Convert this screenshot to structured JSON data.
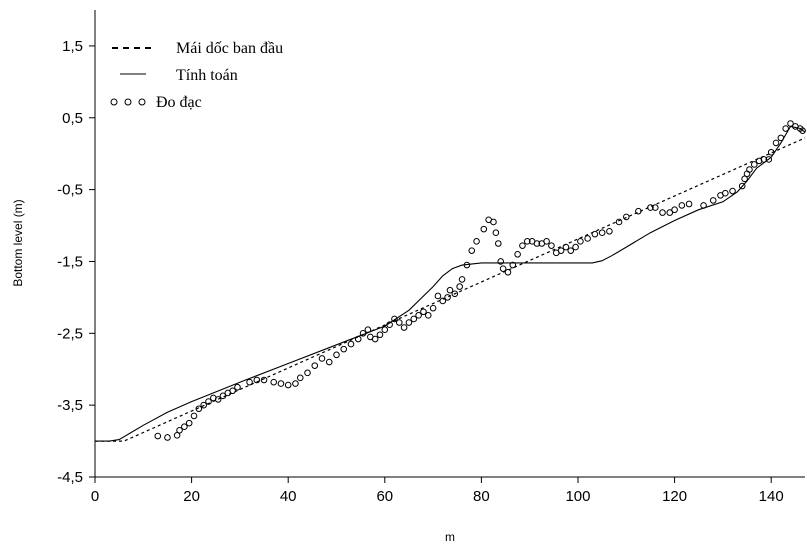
{
  "chart_data": {
    "type": "line",
    "title": "",
    "xlabel": "m",
    "ylabel": "Bottom level (m)",
    "xlim": [
      0,
      147
    ],
    "ylim": [
      -4.5,
      2
    ],
    "x_ticks": [
      0,
      20,
      40,
      60,
      80,
      100,
      120,
      140
    ],
    "x_tick_labels": [
      "0",
      "20",
      "40",
      "60",
      "80",
      "100",
      "120",
      "140"
    ],
    "y_ticks": [
      -4.5,
      -3.5,
      -2.5,
      -1.5,
      -0.5,
      0.5,
      1.5
    ],
    "y_tick_labels": [
      "-4,5",
      "-3,5",
      "-2,5",
      "-1,5",
      "-0,5",
      "0,5",
      "1,5"
    ],
    "grid": false,
    "legend_position": "top-left",
    "legend": [
      {
        "symbol": "- - -",
        "label": "Mái dốc ban đầu"
      },
      {
        "symbol": "—",
        "label": "Tính toán"
      },
      {
        "symbol": "o o o",
        "label": "Đo đạc"
      }
    ],
    "series": [
      {
        "name": "Mái dốc ban đầu",
        "style": "dashed",
        "points": [
          [
            0,
            -4.0
          ],
          [
            6,
            -4.0
          ],
          [
            147,
            0.22
          ]
        ]
      },
      {
        "name": "Tính toán",
        "style": "solid",
        "points": [
          [
            0,
            -4.0
          ],
          [
            3,
            -4.0
          ],
          [
            5,
            -3.98
          ],
          [
            7,
            -3.9
          ],
          [
            10,
            -3.78
          ],
          [
            15,
            -3.6
          ],
          [
            20,
            -3.45
          ],
          [
            30,
            -3.18
          ],
          [
            40,
            -2.92
          ],
          [
            50,
            -2.66
          ],
          [
            60,
            -2.4
          ],
          [
            65,
            -2.18
          ],
          [
            70,
            -1.85
          ],
          [
            72,
            -1.7
          ],
          [
            74,
            -1.6
          ],
          [
            76,
            -1.55
          ],
          [
            80,
            -1.52
          ],
          [
            90,
            -1.52
          ],
          [
            100,
            -1.52
          ],
          [
            103,
            -1.52
          ],
          [
            105,
            -1.49
          ],
          [
            107,
            -1.42
          ],
          [
            110,
            -1.3
          ],
          [
            115,
            -1.1
          ],
          [
            120,
            -0.93
          ],
          [
            125,
            -0.78
          ],
          [
            130,
            -0.67
          ],
          [
            133,
            -0.53
          ],
          [
            135,
            -0.38
          ],
          [
            137,
            -0.2
          ],
          [
            140,
            -0.05
          ],
          [
            142,
            0.15
          ],
          [
            144,
            0.38
          ],
          [
            146,
            0.35
          ],
          [
            147,
            0.3
          ]
        ]
      },
      {
        "name": "Đo đạc",
        "style": "markers",
        "points": [
          [
            13,
            -3.93
          ],
          [
            15,
            -3.95
          ],
          [
            17,
            -3.92
          ],
          [
            17.5,
            -3.85
          ],
          [
            18.5,
            -3.8
          ],
          [
            19.5,
            -3.75
          ],
          [
            20.5,
            -3.65
          ],
          [
            21.5,
            -3.55
          ],
          [
            22.5,
            -3.5
          ],
          [
            23.5,
            -3.45
          ],
          [
            24.5,
            -3.4
          ],
          [
            25.5,
            -3.42
          ],
          [
            26.5,
            -3.37
          ],
          [
            27.5,
            -3.33
          ],
          [
            28.5,
            -3.3
          ],
          [
            29.5,
            -3.25
          ],
          [
            32,
            -3.18
          ],
          [
            33.5,
            -3.15
          ],
          [
            35,
            -3.15
          ],
          [
            37,
            -3.18
          ],
          [
            38.5,
            -3.2
          ],
          [
            40,
            -3.22
          ],
          [
            41.5,
            -3.2
          ],
          [
            42.5,
            -3.12
          ],
          [
            44,
            -3.05
          ],
          [
            45.5,
            -2.95
          ],
          [
            47,
            -2.85
          ],
          [
            48.5,
            -2.9
          ],
          [
            50,
            -2.8
          ],
          [
            51.5,
            -2.72
          ],
          [
            53,
            -2.65
          ],
          [
            54.5,
            -2.58
          ],
          [
            55.5,
            -2.5
          ],
          [
            56.5,
            -2.45
          ],
          [
            57,
            -2.55
          ],
          [
            58,
            -2.58
          ],
          [
            59,
            -2.52
          ],
          [
            60,
            -2.45
          ],
          [
            61,
            -2.38
          ],
          [
            62,
            -2.3
          ],
          [
            63,
            -2.35
          ],
          [
            64,
            -2.42
          ],
          [
            65,
            -2.35
          ],
          [
            66,
            -2.3
          ],
          [
            67,
            -2.25
          ],
          [
            68,
            -2.2
          ],
          [
            69,
            -2.25
          ],
          [
            70,
            -2.15
          ],
          [
            71,
            -1.98
          ],
          [
            72,
            -2.05
          ],
          [
            73,
            -2.0
          ],
          [
            73.5,
            -1.9
          ],
          [
            74.5,
            -1.95
          ],
          [
            75.5,
            -1.85
          ],
          [
            76,
            -1.75
          ],
          [
            77,
            -1.55
          ],
          [
            78,
            -1.35
          ],
          [
            79,
            -1.22
          ],
          [
            80.5,
            -1.05
          ],
          [
            81.5,
            -0.92
          ],
          [
            82.5,
            -0.95
          ],
          [
            83,
            -1.1
          ],
          [
            83.5,
            -1.25
          ],
          [
            84,
            -1.5
          ],
          [
            84.5,
            -1.6
          ],
          [
            85.5,
            -1.65
          ],
          [
            86.5,
            -1.55
          ],
          [
            87.5,
            -1.4
          ],
          [
            88.5,
            -1.28
          ],
          [
            89.5,
            -1.22
          ],
          [
            90.5,
            -1.22
          ],
          [
            91.5,
            -1.25
          ],
          [
            92.5,
            -1.25
          ],
          [
            93.5,
            -1.22
          ],
          [
            94.5,
            -1.28
          ],
          [
            95.5,
            -1.38
          ],
          [
            96.5,
            -1.35
          ],
          [
            97.5,
            -1.3
          ],
          [
            98.5,
            -1.35
          ],
          [
            99.5,
            -1.3
          ],
          [
            100.5,
            -1.22
          ],
          [
            102,
            -1.18
          ],
          [
            103.5,
            -1.12
          ],
          [
            105,
            -1.1
          ],
          [
            106.5,
            -1.08
          ],
          [
            108.5,
            -0.95
          ],
          [
            110,
            -0.88
          ],
          [
            112.5,
            -0.8
          ],
          [
            115,
            -0.75
          ],
          [
            116,
            -0.75
          ],
          [
            117.5,
            -0.82
          ],
          [
            119,
            -0.82
          ],
          [
            120,
            -0.78
          ],
          [
            121.5,
            -0.72
          ],
          [
            123,
            -0.7
          ],
          [
            126,
            -0.72
          ],
          [
            128,
            -0.65
          ],
          [
            129.5,
            -0.58
          ],
          [
            130.5,
            -0.55
          ],
          [
            132,
            -0.52
          ],
          [
            134,
            -0.45
          ],
          [
            134.5,
            -0.35
          ],
          [
            135,
            -0.28
          ],
          [
            135.5,
            -0.22
          ],
          [
            136.5,
            -0.15
          ],
          [
            137.5,
            -0.1
          ],
          [
            138.5,
            -0.08
          ],
          [
            139.5,
            -0.08
          ],
          [
            140,
            0.02
          ],
          [
            141,
            0.15
          ],
          [
            142,
            0.22
          ],
          [
            143,
            0.35
          ],
          [
            144,
            0.42
          ],
          [
            145,
            0.38
          ],
          [
            146,
            0.35
          ],
          [
            146.5,
            0.32
          ]
        ]
      }
    ]
  }
}
